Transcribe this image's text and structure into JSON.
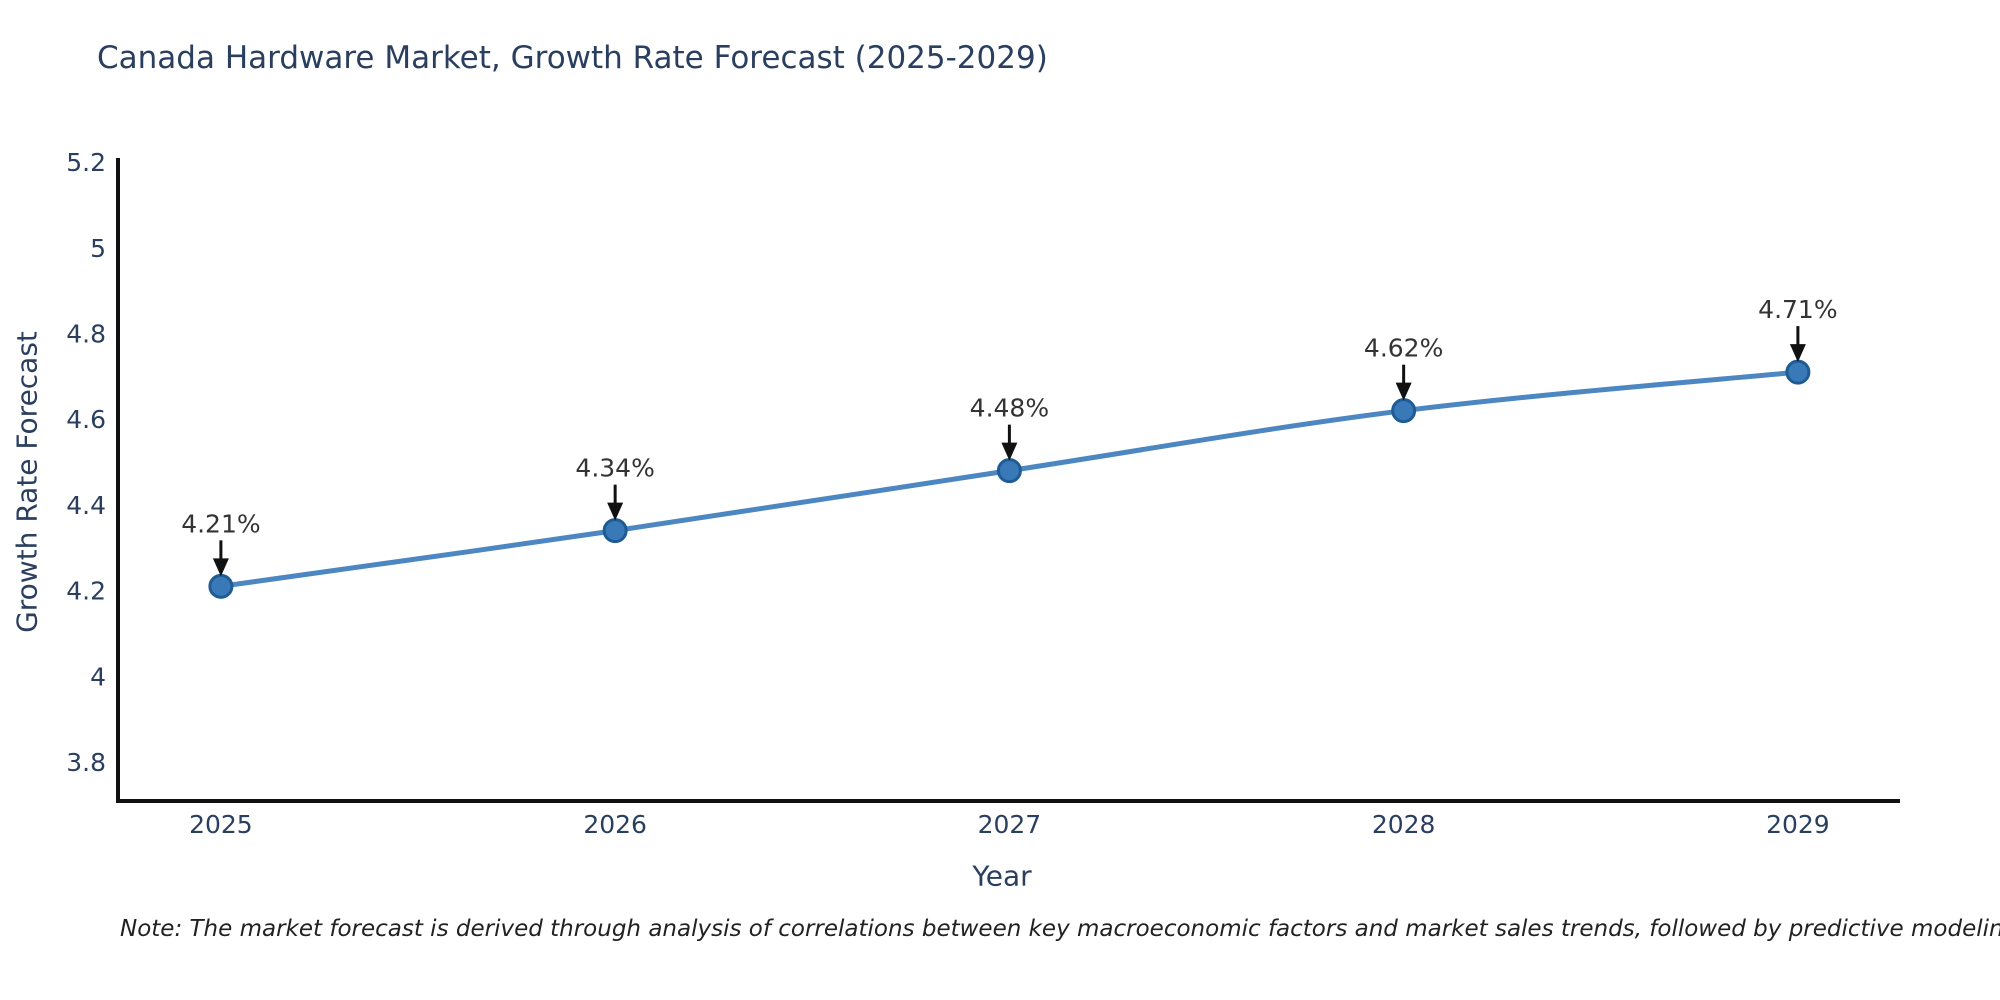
{
  "title": "Canada Hardware Market, Growth Rate Forecast (2025-2029)",
  "footnote": "Note: The market forecast is derived through analysis of correlations between key macroeconomic factors and market sales trends, followed by predictive modeling to project future sales",
  "chart_data": {
    "type": "line",
    "title": "Canada Hardware Market, Growth Rate Forecast (2025-2029)",
    "xlabel": "Year",
    "ylabel": "Growth Rate Forecast",
    "x": [
      2025,
      2026,
      2027,
      2028,
      2029
    ],
    "values": [
      4.21,
      4.34,
      4.48,
      4.62,
      4.71
    ],
    "point_labels": [
      "4.21%",
      "4.34%",
      "4.48%",
      "4.62%",
      "4.71%"
    ],
    "x_tick_labels": [
      "2025",
      "2026",
      "2027",
      "2028",
      "2029"
    ],
    "y_ticks": [
      3.8,
      4.0,
      4.2,
      4.4,
      4.6,
      4.8,
      5.0,
      5.2
    ],
    "y_tick_labels": [
      "3.8",
      "4",
      "4.2",
      "4.4",
      "4.6",
      "4.8",
      "5",
      "5.2"
    ],
    "xlim": [
      2024.739,
      2029.259
    ],
    "ylim": [
      3.709,
      5.205
    ],
    "grid": false,
    "legend": null,
    "annotations_have_arrows": true,
    "colors": {
      "line": "#4c87c2",
      "marker_fill": "#3a79b8",
      "marker_edge": "#1f5c94",
      "axis_line": "#111111",
      "tick_label": "#2a3f5f",
      "annotation_text": "#333333",
      "arrow": "#111111",
      "title": "#2a3f5f",
      "background": "#ffffff"
    }
  }
}
